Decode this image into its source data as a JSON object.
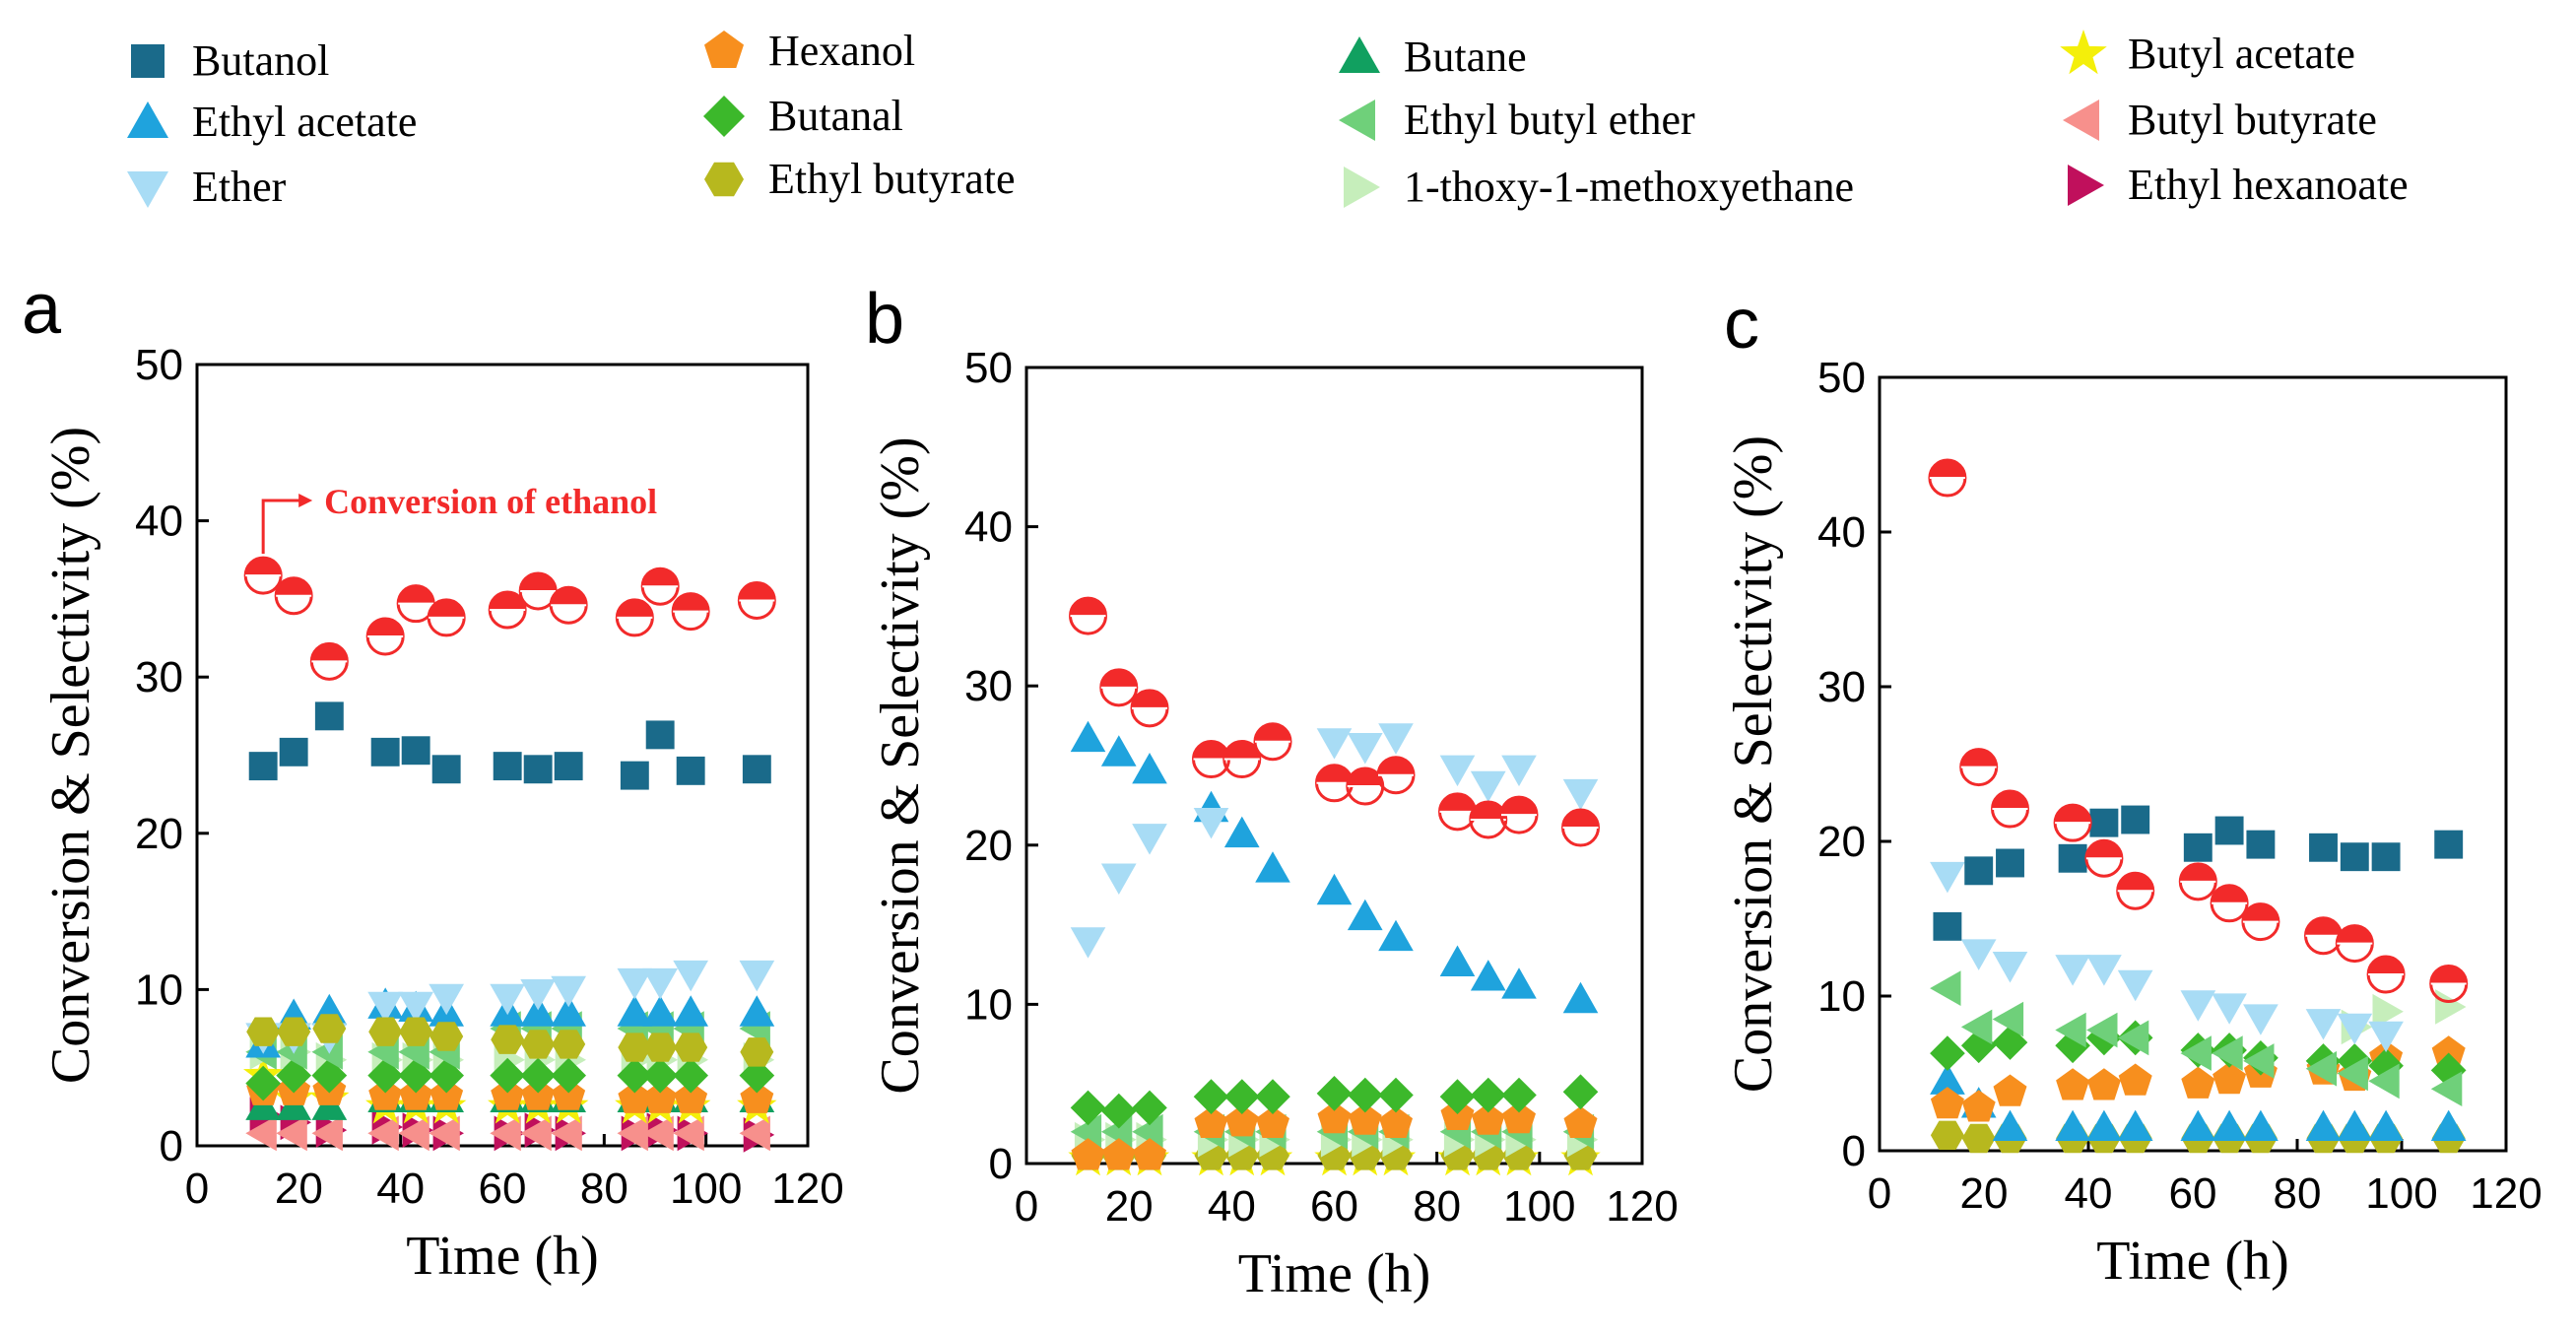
{
  "legend": [
    {
      "name": "Butanol",
      "marker": "square",
      "color": "#1a6a8a"
    },
    {
      "name": "Ethyl acetate",
      "marker": "triangle-up",
      "color": "#1fa3dd"
    },
    {
      "name": "Ether",
      "marker": "triangle-down",
      "color": "#a8dcf5"
    },
    {
      "name": "Hexanol",
      "marker": "pentagon",
      "color": "#f78f1e"
    },
    {
      "name": "Butanal",
      "marker": "diamond",
      "color": "#3cb82b"
    },
    {
      "name": "Ethyl butyrate",
      "marker": "hexagon",
      "color": "#b7b81e"
    },
    {
      "name": "Butane",
      "marker": "triangle-up",
      "color": "#11a060"
    },
    {
      "name": "Ethyl butyl ether",
      "marker": "triangle-left",
      "color": "#6fd07a"
    },
    {
      "name": "1-thoxy-1-methoxyethane",
      "marker": "triangle-right",
      "color": "#c6eebb"
    },
    {
      "name": "Butyl acetate",
      "marker": "star",
      "color": "#f4ef0a"
    },
    {
      "name": "Butyl butyrate",
      "marker": "triangle-left",
      "color": "#f7908c"
    },
    {
      "name": "Ethyl hexanoate",
      "marker": "triangle-right",
      "color": "#c0105c"
    }
  ],
  "colors": {
    "conversion": "#f22a2a",
    "annotation": "#f22a2a",
    "axis": "#000000"
  },
  "chart_data": [
    {
      "panel_label": "a",
      "type": "scatter",
      "xlabel": "Time (h)",
      "ylabel": "Conversion & Selectivity (%)",
      "xlim": [
        0,
        120
      ],
      "ylim": [
        0,
        50
      ],
      "xticks": [
        "0",
        "20",
        "40",
        "60",
        "80",
        "100",
        "120"
      ],
      "yticks": [
        "0",
        "10",
        "20",
        "30",
        "40",
        "50"
      ],
      "annotation": "Conversion of ethanol",
      "x": [
        13,
        19,
        26,
        37,
        43,
        49,
        61,
        67,
        73,
        86,
        91,
        97,
        110
      ],
      "series": [
        {
          "name": "Ethyl hexanoate",
          "values": [
            2,
            1.5,
            1,
            1.2,
            1,
            0.8,
            0.8,
            1,
            0.8,
            0.8,
            1,
            0.8,
            0.7
          ]
        },
        {
          "name": "Butyl butyrate",
          "values": [
            0.8,
            0.8,
            0.8,
            0.8,
            0.8,
            0.8,
            0.8,
            0.8,
            0.8,
            0.8,
            0.8,
            0.8,
            0.8
          ]
        },
        {
          "name": "Butyl acetate",
          "values": [
            4.5,
            3,
            3,
            2.5,
            2.5,
            2.5,
            2.5,
            2.5,
            2.5,
            2.5,
            2.5,
            2.5,
            2.5
          ]
        },
        {
          "name": "Butane",
          "values": [
            2.5,
            2.5,
            2.5,
            3,
            3,
            3,
            3,
            3,
            3,
            3,
            3,
            3,
            3
          ]
        },
        {
          "name": "1-thoxy-1-methoxyethane",
          "values": [
            6,
            6,
            5.5,
            5.5,
            5.5,
            5.5,
            5.5,
            5.5,
            5.5,
            5.5,
            5.5,
            5.5,
            5.5
          ]
        },
        {
          "name": "Hexanol",
          "values": [
            3.5,
            3.5,
            3.5,
            3.2,
            3.2,
            3.2,
            3.2,
            3.2,
            3.2,
            3,
            3,
            3,
            3
          ]
        },
        {
          "name": "Butanal",
          "values": [
            4,
            4.5,
            4.5,
            4.5,
            4.5,
            4.5,
            4.5,
            4.5,
            4.5,
            4.5,
            4.5,
            4.5,
            4.5
          ]
        },
        {
          "name": "Ethyl butyl ether",
          "values": [
            6,
            6,
            6,
            6,
            6,
            6,
            7.5,
            7.5,
            7.5,
            7.5,
            7.5,
            7.5,
            7.5
          ]
        },
        {
          "name": "Ethyl acetate",
          "values": [
            6.5,
            8.3,
            8.6,
            9,
            8.8,
            8.5,
            8.5,
            8.5,
            8.5,
            8.5,
            8.5,
            8.5,
            8.5
          ]
        },
        {
          "name": "Ether",
          "values": [
            7,
            7,
            7,
            9,
            9,
            9.5,
            9.5,
            9.8,
            10,
            10.5,
            10.5,
            11,
            11
          ]
        },
        {
          "name": "Ethyl butyrate",
          "values": [
            7.3,
            7.3,
            7.5,
            7.3,
            7.3,
            7,
            6.8,
            6.5,
            6.5,
            6.3,
            6.3,
            6.3,
            6
          ]
        },
        {
          "name": "Butanol",
          "values": [
            24.3,
            25.2,
            27.5,
            25.2,
            25.3,
            24.1,
            24.3,
            24.1,
            24.3,
            23.7,
            26.3,
            24,
            24.1
          ]
        },
        {
          "name": "Conversion of ethanol",
          "values": [
            36.5,
            35.2,
            31,
            32.6,
            34.7,
            33.8,
            34.3,
            35.5,
            34.6,
            33.8,
            35.8,
            34.2,
            34.9
          ]
        }
      ]
    },
    {
      "panel_label": "b",
      "type": "scatter",
      "xlabel": "Time (h)",
      "ylabel": "Conversion & Selectivity (%)",
      "xlim": [
        0,
        120
      ],
      "ylim": [
        0,
        50
      ],
      "xticks": [
        "0",
        "20",
        "40",
        "60",
        "80",
        "100",
        "120"
      ],
      "yticks": [
        "0",
        "10",
        "20",
        "30",
        "40",
        "50"
      ],
      "x": [
        12,
        18,
        24,
        36,
        42,
        48,
        60,
        66,
        72,
        84,
        90,
        96,
        108
      ],
      "series": [
        {
          "name": "Butyl acetate",
          "values": [
            0.3,
            0.3,
            0.3,
            0.3,
            0.3,
            0.3,
            0.3,
            0.3,
            0.3,
            0.3,
            0.3,
            0.3,
            0.3
          ]
        },
        {
          "name": "Ethyl butyrate",
          "values": [
            0.5,
            0.5,
            0.5,
            0.5,
            0.5,
            0.5,
            0.5,
            0.5,
            0.5,
            0.5,
            0.5,
            0.5,
            0.5
          ]
        },
        {
          "name": "1-thoxy-1-methoxyethane",
          "values": [
            1.5,
            1.5,
            1.5,
            1.5,
            1.5,
            1.5,
            1.5,
            1.5,
            1.5,
            1.5,
            1.5,
            1.5,
            1.5
          ]
        },
        {
          "name": "Ethyl butyl ether",
          "values": [
            2,
            2,
            2,
            2,
            2,
            2,
            2,
            2,
            2,
            2,
            2,
            2,
            2
          ]
        },
        {
          "name": "Hexanol",
          "values": [
            0.5,
            0.5,
            0.5,
            2.5,
            2.6,
            2.5,
            2.8,
            2.7,
            2.5,
            3,
            2.7,
            2.8,
            2.5
          ]
        },
        {
          "name": "Butanal",
          "values": [
            3.5,
            3.3,
            3.5,
            4.2,
            4.2,
            4.2,
            4.4,
            4.3,
            4.3,
            4.2,
            4.3,
            4.3,
            4.5
          ]
        },
        {
          "name": "Ethyl acetate",
          "values": [
            26.7,
            25.8,
            24.7,
            22.3,
            20.7,
            18.5,
            17.1,
            15.5,
            14.2,
            12.6,
            11.7,
            11.2,
            10.3
          ]
        },
        {
          "name": "Ether",
          "values": [
            14,
            18,
            20.5,
            21.5,
            0,
            0,
            26.5,
            26.2,
            26.8,
            24.8,
            23.8,
            24.8,
            23.3
          ]
        },
        {
          "name": "Conversion of ethanol",
          "values": [
            34.4,
            29.9,
            28.6,
            25.4,
            25.4,
            26.5,
            23.9,
            23.7,
            24.4,
            22.1,
            21.6,
            21.9,
            21.1
          ]
        }
      ]
    },
    {
      "panel_label": "c",
      "type": "scatter",
      "xlabel": "Time (h)",
      "ylabel": "Conversion & Selectivity (%)",
      "xlim": [
        0,
        120
      ],
      "ylim": [
        0,
        50
      ],
      "xticks": [
        "0",
        "20",
        "40",
        "60",
        "80",
        "100",
        "120"
      ],
      "yticks": [
        "0",
        "10",
        "20",
        "30",
        "40",
        "50"
      ],
      "x": [
        13,
        19,
        25,
        37,
        43,
        49,
        61,
        67,
        73,
        85,
        91,
        97,
        109
      ],
      "series": [
        {
          "name": "Ethyl butyrate",
          "values": [
            1,
            0.8,
            0.8,
            0.8,
            0.8,
            0.8,
            0.8,
            0.8,
            0.8,
            0.8,
            0.8,
            0.8,
            0.8
          ]
        },
        {
          "name": "Ethyl acetate",
          "values": [
            4.5,
            3,
            1.5,
            1.5,
            1.5,
            1.5,
            1.5,
            1.5,
            1.5,
            1.5,
            1.5,
            1.5,
            1.5
          ]
        },
        {
          "name": "Hexanol",
          "values": [
            3,
            2.8,
            3.8,
            4.2,
            4.2,
            4.5,
            4.3,
            4.6,
            5,
            5.2,
            4.8,
            6,
            6.3
          ]
        },
        {
          "name": "Butanal",
          "values": [
            6.3,
            6.8,
            7,
            6.8,
            7.3,
            7.3,
            6.5,
            6.5,
            6,
            5.8,
            5.8,
            5.5,
            5.2
          ]
        },
        {
          "name": "Ethyl butyl ether",
          "values": [
            10.5,
            8,
            8.5,
            7.8,
            7.8,
            7.3,
            6.3,
            6.3,
            5.8,
            5.3,
            5,
            4.5,
            4
          ]
        },
        {
          "name": "1-thoxy-1-methoxyethane",
          "values": [
            0,
            0,
            0,
            0,
            0,
            0,
            0,
            0,
            0,
            0,
            8,
            9,
            9.3
          ]
        },
        {
          "name": "Ether",
          "values": [
            17.8,
            12.8,
            12,
            11.8,
            11.8,
            10.8,
            9.5,
            9.3,
            8.6,
            8.3,
            8,
            7.5,
            0
          ]
        },
        {
          "name": "Butanol",
          "values": [
            14.5,
            18.1,
            18.6,
            18.9,
            21.2,
            21.4,
            19.6,
            20.7,
            19.8,
            19.6,
            19,
            19,
            19.8
          ]
        },
        {
          "name": "Conversion of ethanol",
          "values": [
            43.5,
            24.8,
            22.1,
            21.2,
            18.9,
            16.8,
            17.4,
            16,
            14.8,
            13.9,
            13.4,
            11.4,
            10.8
          ]
        }
      ]
    }
  ]
}
